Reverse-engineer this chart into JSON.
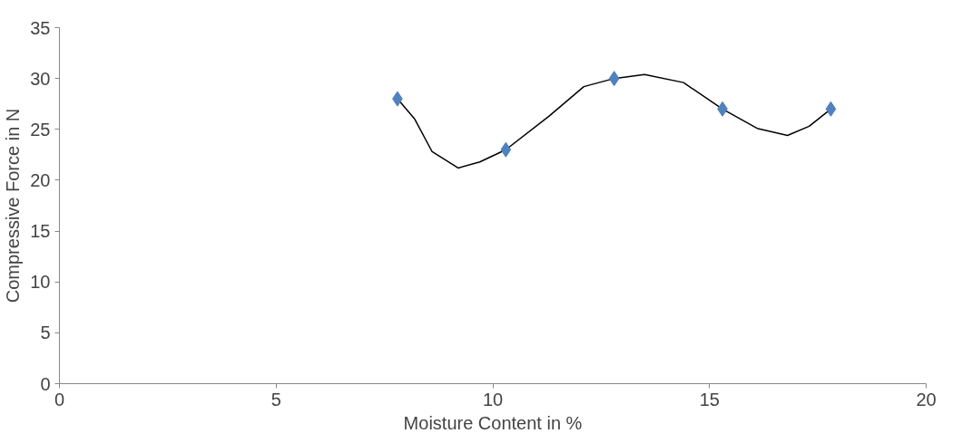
{
  "chart_data": {
    "type": "scatter",
    "xlabel": "Moisture Content in %",
    "ylabel": "Compressive Force in N",
    "xlim": [
      0,
      20
    ],
    "xticks": [
      0,
      5,
      10,
      15,
      20
    ],
    "ylim": [
      0,
      35
    ],
    "yticks": [
      0,
      5,
      10,
      15,
      20,
      25,
      30,
      35
    ],
    "grid": false,
    "series": [
      {
        "marker": "diamond",
        "color": "#4f81bd",
        "x": [
          7.8,
          10.3,
          12.8,
          15.3,
          17.8
        ],
        "values": [
          28,
          23,
          30,
          27,
          27
        ]
      },
      {
        "type": "line",
        "marker": "none",
        "color": "#000000",
        "x": [
          7.8,
          8.2,
          8.6,
          9.2,
          9.7,
          10.3,
          11.3,
          12.1,
          12.8,
          13.5,
          14.4,
          15.3,
          16.1,
          16.8,
          17.3,
          17.8
        ],
        "values": [
          28,
          26,
          22.8,
          21.2,
          21.8,
          23,
          26.3,
          29.2,
          30,
          30.4,
          29.6,
          27,
          25.1,
          24.4,
          25.3,
          27
        ]
      }
    ]
  }
}
